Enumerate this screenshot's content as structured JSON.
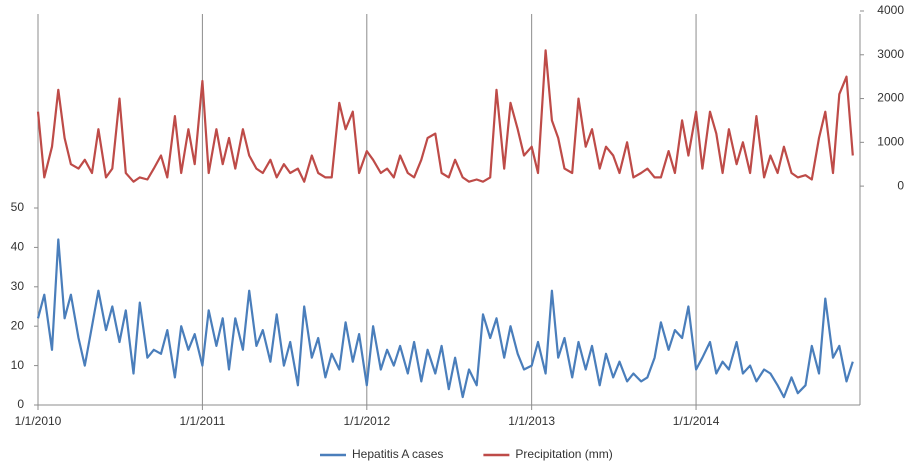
{
  "chart_data": {
    "type": "line",
    "x": [
      "1/1/2010",
      "1/15/2010",
      "2/1/2010",
      "2/15/2010",
      "3/1/2010",
      "3/15/2010",
      "4/1/2010",
      "4/15/2010",
      "5/1/2010",
      "5/15/2010",
      "6/1/2010",
      "6/15/2010",
      "7/1/2010",
      "7/15/2010",
      "8/1/2010",
      "8/15/2010",
      "9/1/2010",
      "9/15/2010",
      "10/1/2010",
      "10/15/2010",
      "11/1/2010",
      "11/15/2010",
      "12/1/2010",
      "12/15/2010",
      "1/1/2011",
      "1/15/2011",
      "2/1/2011",
      "2/15/2011",
      "3/1/2011",
      "3/15/2011",
      "4/1/2011",
      "4/15/2011",
      "5/1/2011",
      "5/15/2011",
      "6/1/2011",
      "6/15/2011",
      "7/1/2011",
      "7/15/2011",
      "8/1/2011",
      "8/15/2011",
      "9/1/2011",
      "9/15/2011",
      "10/1/2011",
      "10/15/2011",
      "11/1/2011",
      "11/15/2011",
      "12/1/2011",
      "12/15/2011",
      "1/1/2012",
      "1/15/2012",
      "2/1/2012",
      "2/15/2012",
      "3/1/2012",
      "3/15/2012",
      "4/1/2012",
      "4/15/2012",
      "5/1/2012",
      "5/15/2012",
      "6/1/2012",
      "6/15/2012",
      "7/1/2012",
      "7/15/2012",
      "8/1/2012",
      "8/15/2012",
      "9/1/2012",
      "9/15/2012",
      "10/1/2012",
      "10/15/2012",
      "11/1/2012",
      "11/15/2012",
      "12/1/2012",
      "12/15/2012",
      "1/1/2013",
      "1/15/2013",
      "2/1/2013",
      "2/15/2013",
      "3/1/2013",
      "3/15/2013",
      "4/1/2013",
      "4/15/2013",
      "5/1/2013",
      "5/15/2013",
      "6/1/2013",
      "6/15/2013",
      "7/1/2013",
      "7/15/2013",
      "8/1/2013",
      "8/15/2013",
      "9/1/2013",
      "9/15/2013",
      "10/1/2013",
      "10/15/2013",
      "11/1/2013",
      "11/15/2013",
      "12/1/2013",
      "12/15/2013",
      "1/1/2014",
      "1/15/2014",
      "2/1/2014",
      "2/15/2014",
      "3/1/2014",
      "3/15/2014",
      "4/1/2014",
      "4/15/2014",
      "5/1/2014",
      "5/15/2014",
      "6/1/2014",
      "6/15/2014",
      "7/1/2014",
      "7/15/2014",
      "8/1/2014",
      "8/15/2014",
      "9/1/2014",
      "9/15/2014",
      "10/1/2014",
      "10/15/2014",
      "11/1/2014",
      "11/15/2014",
      "12/1/2014",
      "12/15/2014"
    ],
    "series": [
      {
        "name": "Hepatitis A cases",
        "color": "#4a7ebb",
        "values": [
          22,
          28,
          14,
          42,
          22,
          28,
          17,
          10,
          20,
          29,
          19,
          25,
          16,
          24,
          8,
          26,
          12,
          14,
          13,
          19,
          7,
          20,
          14,
          18,
          10,
          24,
          15,
          22,
          9,
          22,
          14,
          29,
          15,
          19,
          11,
          23,
          10,
          16,
          5,
          25,
          12,
          17,
          7,
          13,
          9,
          21,
          11,
          18,
          5,
          20,
          9,
          14,
          10,
          15,
          8,
          16,
          6,
          14,
          8,
          15,
          4,
          12,
          2,
          9,
          5,
          23,
          17,
          22,
          12,
          20,
          13,
          9,
          10,
          16,
          8,
          29,
          12,
          17,
          7,
          16,
          9,
          15,
          5,
          13,
          7,
          11,
          6,
          8,
          6,
          7,
          12,
          21,
          14,
          19,
          17,
          25,
          9,
          12,
          16,
          8,
          11,
          9,
          16,
          8,
          10,
          6,
          9,
          8,
          5,
          2,
          7,
          3,
          5,
          15,
          8,
          27,
          12,
          15,
          6,
          11
        ]
      },
      {
        "name": "Precipitation (mm)",
        "color": "#be4b48",
        "axis": "y2",
        "values": [
          1700,
          200,
          900,
          2200,
          1100,
          500,
          400,
          600,
          300,
          1300,
          200,
          400,
          2000,
          300,
          100,
          200,
          150,
          400,
          700,
          200,
          1600,
          300,
          1300,
          500,
          2400,
          300,
          1300,
          500,
          1100,
          400,
          1300,
          700,
          400,
          300,
          600,
          200,
          500,
          300,
          400,
          100,
          700,
          300,
          200,
          200,
          1900,
          1300,
          1700,
          300,
          800,
          600,
          300,
          400,
          200,
          700,
          300,
          200,
          600,
          1100,
          1200,
          300,
          200,
          600,
          200,
          100,
          150,
          100,
          200,
          2200,
          400,
          1900,
          1300,
          700,
          900,
          300,
          3100,
          1500,
          1100,
          400,
          300,
          2000,
          900,
          1300,
          400,
          900,
          700,
          300,
          1000,
          200,
          300,
          400,
          200,
          200,
          800,
          300,
          1500,
          700,
          1700,
          400,
          1700,
          1200,
          300,
          1300,
          500,
          1000,
          300,
          1600,
          200,
          700,
          300,
          900,
          300,
          200,
          250,
          150,
          1100,
          1700,
          300,
          2100,
          2500,
          700
        ]
      }
    ],
    "xlim": [
      "1/1/2010",
      "12/31/2014"
    ],
    "xticks": [
      "1/1/2010",
      "1/1/2011",
      "1/1/2012",
      "1/1/2013",
      "1/1/2014"
    ],
    "ylim": [
      0,
      100
    ],
    "yticks": [
      0,
      10,
      20,
      30,
      40,
      50
    ],
    "y2lim": [
      -5000,
      4000
    ],
    "y2ticks": [
      0,
      1000,
      2000,
      3000,
      4000
    ],
    "grid": true,
    "legend": "bottom"
  }
}
